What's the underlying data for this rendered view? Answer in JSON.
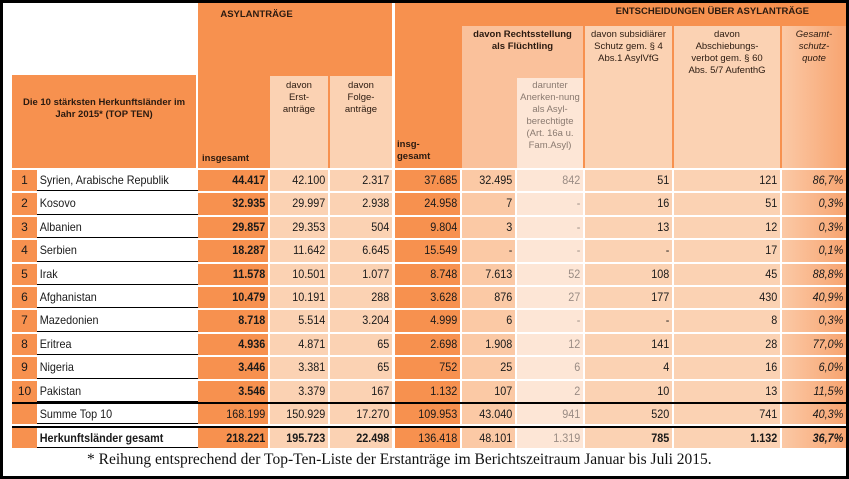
{
  "header": {
    "left_title": "Die 10 stärksten Herkunftsländer im Jahr 2015* (TOP TEN)",
    "asyl_group": "ASYLANTRÄGE",
    "asyl_insgesamt": "insgesamt",
    "asyl_erst": "davon Erst-anträge",
    "asyl_folge": "davon Folge-anträge",
    "ent_group": "ENTSCHEIDUNGEN ÜBER ASYLANTRÄGE",
    "ent_insgesamt": "insg-gesamt",
    "ent_recht": "davon Rechtsstellung als Flüchtling",
    "ent_darunter": "darunter Anerken-nung als Asyl-berechtigte (Art. 16a u. Fam.Asyl)",
    "ent_subsidiaer": "davon subsidiärer Schutz gem. § 4 Abs.1 AsylVfG",
    "ent_abschiebung": "davon Abschiebungs-verbot gem. § 60 Abs. 5/7 AufenthG",
    "ent_quote": "Gesamt-schutz-quote"
  },
  "rows": [
    {
      "rank": "1",
      "country": "Syrien, Arabische Republik",
      "values": [
        "44.417",
        "42.100",
        "2.317",
        "37.685",
        "32.495",
        "842",
        "51",
        "121",
        "86,7%"
      ]
    },
    {
      "rank": "2",
      "country": "Kosovo",
      "values": [
        "32.935",
        "29.997",
        "2.938",
        "24.958",
        "7",
        "-",
        "16",
        "51",
        "0,3%"
      ]
    },
    {
      "rank": "3",
      "country": "Albanien",
      "values": [
        "29.857",
        "29.353",
        "504",
        "9.804",
        "3",
        "-",
        "13",
        "12",
        "0,3%"
      ]
    },
    {
      "rank": "4",
      "country": "Serbien",
      "values": [
        "18.287",
        "11.642",
        "6.645",
        "15.549",
        "-",
        "-",
        "-",
        "17",
        "0,1%"
      ]
    },
    {
      "rank": "5",
      "country": "Irak",
      "values": [
        "11.578",
        "10.501",
        "1.077",
        "8.748",
        "7.613",
        "52",
        "108",
        "45",
        "88,8%"
      ]
    },
    {
      "rank": "6",
      "country": "Afghanistan",
      "values": [
        "10.479",
        "10.191",
        "288",
        "3.628",
        "876",
        "27",
        "177",
        "430",
        "40,9%"
      ]
    },
    {
      "rank": "7",
      "country": "Mazedonien",
      "values": [
        "8.718",
        "5.514",
        "3.204",
        "4.999",
        "6",
        "-",
        "-",
        "8",
        "0,3%"
      ]
    },
    {
      "rank": "8",
      "country": "Eritrea",
      "values": [
        "4.936",
        "4.871",
        "65",
        "2.698",
        "1.908",
        "12",
        "141",
        "28",
        "77,0%"
      ]
    },
    {
      "rank": "9",
      "country": "Nigeria",
      "values": [
        "3.446",
        "3.381",
        "65",
        "752",
        "25",
        "6",
        "4",
        "16",
        "6,0%"
      ]
    },
    {
      "rank": "10",
      "country": "Pakistan",
      "values": [
        "3.546",
        "3.379",
        "167",
        "1.132",
        "107",
        "2",
        "10",
        "13",
        "11,5%"
      ]
    }
  ],
  "summary": {
    "label": "Summe Top 10",
    "values": [
      "168.199",
      "150.929",
      "17.270",
      "109.953",
      "43.040",
      "941",
      "520",
      "741",
      "40,3%"
    ]
  },
  "total": {
    "label": "Herkunftsländer gesamt",
    "values": [
      "218.221",
      "195.723",
      "22.498",
      "136.418",
      "48.101",
      "1.319",
      "785",
      "1.132",
      "36,7%"
    ]
  },
  "footnote": "* Reihung entsprechend der Top-Ten-Liste der Erstanträge im Berichtszeitraum Januar bis Juli 2015.",
  "colors": {
    "orange": "#f7914f",
    "peach": "#fbd2b3",
    "light": "#fde6d6"
  }
}
